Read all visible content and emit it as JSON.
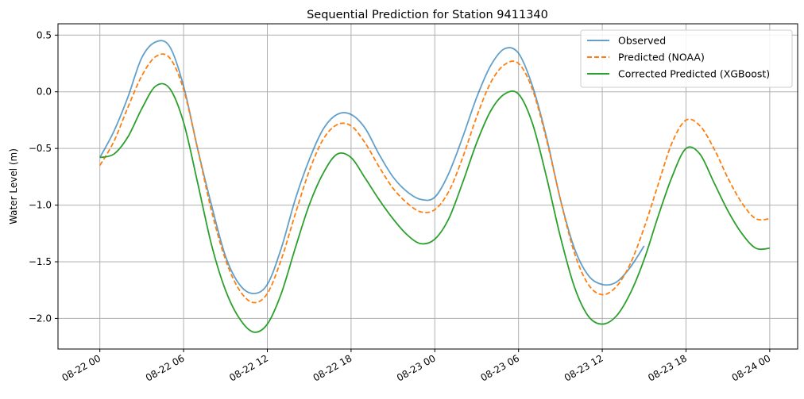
{
  "chart_data": {
    "type": "line",
    "title": "Sequential Prediction for Station 9411340",
    "xlabel": "",
    "ylabel": "Water Level (m)",
    "x_unit": "hours since 08-22 00",
    "xlim": [
      -3,
      50
    ],
    "ylim": [
      -2.27,
      0.6
    ],
    "grid": true,
    "legend_position": "top-right",
    "x_ticks": [
      {
        "value": 0,
        "label": "08-22 00"
      },
      {
        "value": 6,
        "label": "08-22 06"
      },
      {
        "value": 12,
        "label": "08-22 12"
      },
      {
        "value": 18,
        "label": "08-22 18"
      },
      {
        "value": 24,
        "label": "08-23 00"
      },
      {
        "value": 30,
        "label": "08-23 06"
      },
      {
        "value": 36,
        "label": "08-23 12"
      },
      {
        "value": 42,
        "label": "08-23 18"
      },
      {
        "value": 48,
        "label": "08-24 00"
      }
    ],
    "y_ticks": [
      {
        "value": 0.5,
        "label": "0.5"
      },
      {
        "value": 0.0,
        "label": "0.0"
      },
      {
        "value": -0.5,
        "label": "−0.5"
      },
      {
        "value": -1.0,
        "label": "−1.0"
      },
      {
        "value": -1.5,
        "label": "−1.5"
      },
      {
        "value": -2.0,
        "label": "−2.0"
      }
    ],
    "series": [
      {
        "name": "Observed",
        "color": "#1f77b4",
        "style": "solid",
        "opacity": 0.7,
        "points": [
          [
            0,
            -0.58
          ],
          [
            1,
            -0.35
          ],
          [
            2,
            -0.05
          ],
          [
            3,
            0.3
          ],
          [
            4,
            0.44
          ],
          [
            5,
            0.4
          ],
          [
            6,
            0.05
          ],
          [
            7,
            -0.5
          ],
          [
            8,
            -1.0
          ],
          [
            9,
            -1.45
          ],
          [
            10,
            -1.7
          ],
          [
            11,
            -1.78
          ],
          [
            12,
            -1.7
          ],
          [
            13,
            -1.38
          ],
          [
            14,
            -0.95
          ],
          [
            15,
            -0.6
          ],
          [
            16,
            -0.33
          ],
          [
            17,
            -0.2
          ],
          [
            18,
            -0.2
          ],
          [
            19,
            -0.32
          ],
          [
            20,
            -0.55
          ],
          [
            21,
            -0.75
          ],
          [
            22,
            -0.88
          ],
          [
            23,
            -0.95
          ],
          [
            24,
            -0.93
          ],
          [
            25,
            -0.72
          ],
          [
            26,
            -0.4
          ],
          [
            27,
            -0.05
          ],
          [
            28,
            0.23
          ],
          [
            29,
            0.38
          ],
          [
            30,
            0.34
          ],
          [
            31,
            0.05
          ],
          [
            32,
            -0.4
          ],
          [
            33,
            -0.95
          ],
          [
            34,
            -1.38
          ],
          [
            35,
            -1.62
          ],
          [
            36,
            -1.7
          ],
          [
            37,
            -1.68
          ],
          [
            38,
            -1.55
          ],
          [
            39,
            -1.36
          ]
        ]
      },
      {
        "name": "Predicted (NOAA)",
        "color": "#ff7f0e",
        "style": "dashed",
        "points": [
          [
            0,
            -0.65
          ],
          [
            1,
            -0.44
          ],
          [
            2,
            -0.14
          ],
          [
            3,
            0.14
          ],
          [
            4,
            0.31
          ],
          [
            5,
            0.3
          ],
          [
            6,
            0.02
          ],
          [
            7,
            -0.5
          ],
          [
            8,
            -1.05
          ],
          [
            9,
            -1.48
          ],
          [
            10,
            -1.75
          ],
          [
            11,
            -1.86
          ],
          [
            12,
            -1.78
          ],
          [
            13,
            -1.48
          ],
          [
            14,
            -1.08
          ],
          [
            15,
            -0.7
          ],
          [
            16,
            -0.42
          ],
          [
            17,
            -0.29
          ],
          [
            18,
            -0.3
          ],
          [
            19,
            -0.45
          ],
          [
            20,
            -0.66
          ],
          [
            21,
            -0.85
          ],
          [
            22,
            -0.98
          ],
          [
            23,
            -1.06
          ],
          [
            24,
            -1.04
          ],
          [
            25,
            -0.88
          ],
          [
            26,
            -0.58
          ],
          [
            27,
            -0.22
          ],
          [
            28,
            0.08
          ],
          [
            29,
            0.24
          ],
          [
            30,
            0.25
          ],
          [
            31,
            0.02
          ],
          [
            32,
            -0.42
          ],
          [
            33,
            -0.95
          ],
          [
            34,
            -1.42
          ],
          [
            35,
            -1.7
          ],
          [
            36,
            -1.79
          ],
          [
            37,
            -1.72
          ],
          [
            38,
            -1.52
          ],
          [
            39,
            -1.2
          ],
          [
            40,
            -0.82
          ],
          [
            41,
            -0.45
          ],
          [
            42,
            -0.25
          ],
          [
            43,
            -0.3
          ],
          [
            44,
            -0.5
          ],
          [
            45,
            -0.76
          ],
          [
            46,
            -0.98
          ],
          [
            47,
            -1.12
          ],
          [
            48,
            -1.12
          ]
        ]
      },
      {
        "name": "Corrected Predicted (XGBoost)",
        "color": "#2ca02c",
        "style": "solid",
        "points": [
          [
            0,
            -0.58
          ],
          [
            1,
            -0.55
          ],
          [
            2,
            -0.4
          ],
          [
            3,
            -0.15
          ],
          [
            4,
            0.05
          ],
          [
            5,
            0.03
          ],
          [
            6,
            -0.27
          ],
          [
            7,
            -0.8
          ],
          [
            8,
            -1.35
          ],
          [
            9,
            -1.75
          ],
          [
            10,
            -2.0
          ],
          [
            11,
            -2.12
          ],
          [
            12,
            -2.05
          ],
          [
            13,
            -1.78
          ],
          [
            14,
            -1.38
          ],
          [
            15,
            -1.0
          ],
          [
            16,
            -0.72
          ],
          [
            17,
            -0.55
          ],
          [
            18,
            -0.58
          ],
          [
            19,
            -0.76
          ],
          [
            20,
            -0.95
          ],
          [
            21,
            -1.12
          ],
          [
            22,
            -1.26
          ],
          [
            23,
            -1.34
          ],
          [
            24,
            -1.3
          ],
          [
            25,
            -1.12
          ],
          [
            26,
            -0.8
          ],
          [
            27,
            -0.45
          ],
          [
            28,
            -0.17
          ],
          [
            29,
            -0.02
          ],
          [
            30,
            -0.02
          ],
          [
            31,
            -0.28
          ],
          [
            32,
            -0.75
          ],
          [
            33,
            -1.28
          ],
          [
            34,
            -1.72
          ],
          [
            35,
            -1.98
          ],
          [
            36,
            -2.05
          ],
          [
            37,
            -1.98
          ],
          [
            38,
            -1.78
          ],
          [
            39,
            -1.48
          ],
          [
            40,
            -1.1
          ],
          [
            41,
            -0.75
          ],
          [
            42,
            -0.5
          ],
          [
            43,
            -0.55
          ],
          [
            44,
            -0.8
          ],
          [
            45,
            -1.05
          ],
          [
            46,
            -1.25
          ],
          [
            47,
            -1.38
          ],
          [
            48,
            -1.38
          ]
        ]
      }
    ]
  }
}
